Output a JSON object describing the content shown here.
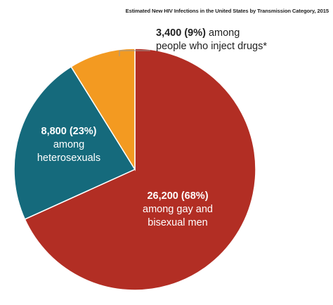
{
  "chart_data": {
    "type": "pie",
    "title": "Estimated New HIV Infections in the United States by Transmission Category, 2015",
    "slices": [
      {
        "value_label": "26,200 (68%)",
        "line1": "among gay and",
        "line2": "bisexual men",
        "value": 26200,
        "percent": 68,
        "color": "#b22e24"
      },
      {
        "value_label": "8,800 (23%)",
        "line1": "among",
        "line2": "heterosexuals",
        "value": 8800,
        "percent": 23,
        "color": "#156a7c"
      },
      {
        "value_label": "3,400 (9%)",
        "line1": "among",
        "line2": "people who inject drugs*",
        "value": 3400,
        "percent": 9,
        "color": "#f39a21"
      }
    ],
    "start_angle_deg": 0,
    "direction": "clockwise",
    "legend": "none",
    "leader_line_color": "#999999"
  }
}
